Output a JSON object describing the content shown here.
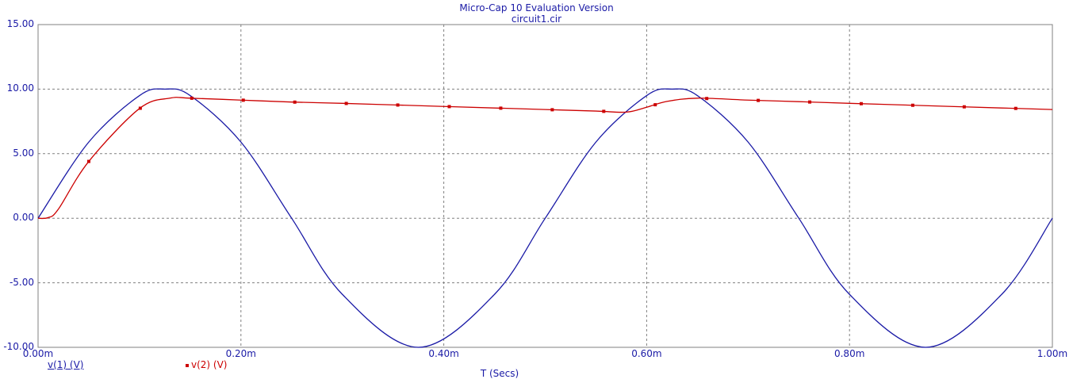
{
  "header": {
    "title": "Micro-Cap 10 Evaluation Version",
    "subtitle": "circuit1.cir"
  },
  "colors": {
    "v1": "#1a1aa6",
    "v2": "#cc0000",
    "grid": "#808080",
    "axis_text": "#1a1aa6"
  },
  "chart_data": {
    "type": "line",
    "title": "Micro-Cap 10 Evaluation Version",
    "subtitle": "circuit1.cir",
    "xlabel": "T (Secs)",
    "ylabel": "",
    "xlim": [
      0,
      0.001
    ],
    "ylim": [
      -10,
      15
    ],
    "grid": true,
    "legend_position": "bottom-left",
    "x_ticks": [
      0,
      0.0002,
      0.0004,
      0.0006,
      0.0008,
      0.001
    ],
    "x_tick_labels": [
      "0.00m",
      "0.20m",
      "0.40m",
      "0.60m",
      "0.80m",
      "1.00m"
    ],
    "y_ticks": [
      15,
      10,
      5,
      0,
      -5,
      -10
    ],
    "y_tick_labels": [
      "15.00",
      "10.00",
      "5.00",
      "0.00",
      "-5.00",
      "-10.00"
    ],
    "series": [
      {
        "name": "v(1) (V)",
        "x": [
          0,
          5e-05,
          0.0001,
          0.000125,
          0.00015,
          0.0002,
          0.00025,
          0.0003,
          0.000375,
          0.00045,
          0.0005,
          0.00055,
          0.0006,
          0.000625,
          0.00065,
          0.0007,
          0.00075,
          0.0008,
          0.000875,
          0.00095,
          0.001
        ],
        "values": [
          0,
          5.9,
          9.5,
          10,
          9.5,
          5.9,
          0,
          -5.9,
          -10,
          -5.9,
          0,
          5.9,
          9.5,
          10,
          9.5,
          5.9,
          0,
          -5.9,
          -10,
          -5.9,
          0
        ]
      },
      {
        "name": "v(2) (V)",
        "x": [
          0,
          1e-05,
          2e-05,
          5e-05,
          0.0001,
          0.00013,
          0.00015,
          0.0002,
          0.00025,
          0.0003,
          0.00035,
          0.0004,
          0.00045,
          0.0005,
          0.00055,
          0.00058,
          0.0006,
          0.00062,
          0.00065,
          0.0007,
          0.00075,
          0.0008,
          0.00085,
          0.0009,
          0.00095,
          0.001
        ],
        "values": [
          0,
          0.05,
          0.7,
          4.4,
          8.5,
          9.3,
          9.3,
          9.15,
          9.0,
          8.9,
          8.78,
          8.66,
          8.54,
          8.42,
          8.3,
          8.22,
          8.6,
          9.05,
          9.3,
          9.15,
          9.03,
          8.9,
          8.78,
          8.66,
          8.54,
          8.42
        ]
      }
    ]
  },
  "legend": {
    "v1": "v(1) (V)",
    "v2": "v(2) (V)"
  }
}
